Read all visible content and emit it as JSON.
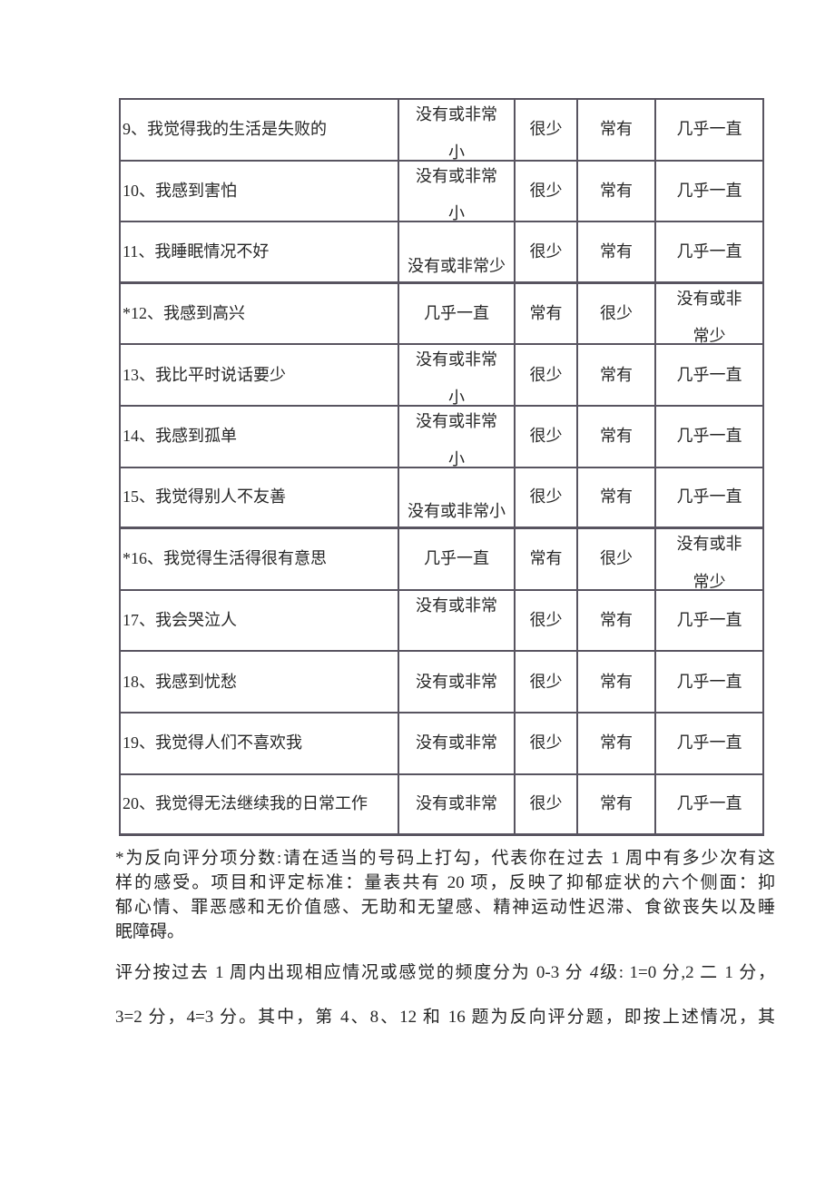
{
  "colors": {
    "text": "#262626",
    "border": "#585460",
    "background": "#ffffff"
  },
  "table": {
    "rows": [
      {
        "question": "9、我觉得我的生活是失败的",
        "opt1": {
          "lines": [
            "没有或非常",
            "小"
          ],
          "align": "spread"
        },
        "opt2": "很少",
        "opt3": "常有",
        "opt4": {
          "lines": [
            "几乎一直"
          ],
          "align": "middle"
        }
      },
      {
        "question": "10、我感到害怕",
        "opt1": {
          "lines": [
            "没有或非常",
            "小"
          ],
          "align": "spread"
        },
        "opt2": "很少",
        "opt3": "常有",
        "opt4": {
          "lines": [
            "几乎一直"
          ],
          "align": "middle"
        }
      },
      {
        "question": "11、我睡眠情况不好",
        "opt1": {
          "lines": [
            "没有或非常少"
          ],
          "align": "bottom"
        },
        "opt2": "很少",
        "opt3": "常有",
        "opt4": {
          "lines": [
            "几乎一直"
          ],
          "align": "middle"
        }
      },
      {
        "question": "*12、我感到高兴",
        "opt1": {
          "lines": [
            "几乎一直"
          ],
          "align": "middle"
        },
        "opt2": "常有",
        "opt3": "很少",
        "opt4": {
          "lines": [
            "没有或非",
            "常少"
          ],
          "align": "spread"
        }
      },
      {
        "question": "13、我比平时说话要少",
        "opt1": {
          "lines": [
            "没有或非常",
            "小"
          ],
          "align": "spread"
        },
        "opt2": "很少",
        "opt3": "常有",
        "opt4": {
          "lines": [
            "几乎一直"
          ],
          "align": "middle"
        }
      },
      {
        "question": "14、我感到孤单",
        "opt1": {
          "lines": [
            "没有或非常",
            "小"
          ],
          "align": "spread"
        },
        "opt2": "很少",
        "opt3": "常有",
        "opt4": {
          "lines": [
            "几乎一直"
          ],
          "align": "middle"
        }
      },
      {
        "question": "15、我觉得别人不友善",
        "opt1": {
          "lines": [
            "没有或非常小"
          ],
          "align": "bottom"
        },
        "opt2": "很少",
        "opt3": "常有",
        "opt4": {
          "lines": [
            "几乎一直"
          ],
          "align": "middle"
        }
      },
      {
        "question": "*16、我觉得生活得很有意思",
        "opt1": {
          "lines": [
            "几乎一直"
          ],
          "align": "middle"
        },
        "opt2": "常有",
        "opt3": "很少",
        "opt4": {
          "lines": [
            "没有或非",
            "常少"
          ],
          "align": "spread"
        }
      },
      {
        "question": "17、我会哭泣人",
        "opt1": {
          "lines": [
            "没有或非常"
          ],
          "align": "top"
        },
        "opt2": "很少",
        "opt3": "常有",
        "opt4": {
          "lines": [
            "几乎一直"
          ],
          "align": "middle"
        }
      },
      {
        "question": "18、我感到忧愁",
        "opt1": {
          "lines": [
            "没有或非常"
          ],
          "align": "middle"
        },
        "opt2": "很少",
        "opt3": "常有",
        "opt4": {
          "lines": [
            "几乎一直"
          ],
          "align": "middle"
        }
      },
      {
        "question": "19、我觉得人们不喜欢我",
        "opt1": {
          "lines": [
            "没有或非常"
          ],
          "align": "middle"
        },
        "opt2": "很少",
        "opt3": "常有",
        "opt4": {
          "lines": [
            "几乎一直"
          ],
          "align": "middle"
        }
      },
      {
        "question": "20、我觉得无法继续我的日常工作",
        "opt1": {
          "lines": [
            "没有或非常"
          ],
          "align": "middle"
        },
        "opt2": "很少",
        "opt3": "常有",
        "opt4": {
          "lines": [
            "几乎一直"
          ],
          "align": "middle"
        }
      }
    ]
  },
  "notes": {
    "para1_lines": [
      "*为反向评分项分数:请在适当的号码上打勾，代表你在过去 1 周中有多少次有这",
      "样的感受。项目和评定标准：量表共有 20 项，反映了抑郁症状的六个侧面：抑",
      "郁心情、罪恶感和无价值感、无助和无望感、精神运动性迟滞、食欲丧失以及睡",
      "眠障碍。"
    ],
    "para2": {
      "line1_pre": "评分按过去 1 周内出现相应情况或感觉的频度分为 0-3 分 ",
      "line1_italic": "4",
      "line1_post": "级: 1=0 分,2 二 1 分，",
      "line2": "3=2 分，4=3 分。其中，第 4、8、12 和 16 题为反向评分题，即按上述情况，其"
    }
  }
}
